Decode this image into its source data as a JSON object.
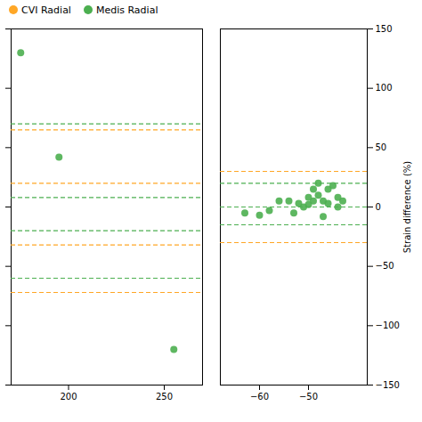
{
  "chart_data": [
    {
      "type": "scatter",
      "xlim": [
        170,
        270
      ],
      "xticks": [
        200,
        250
      ],
      "ylim": [
        -150,
        150
      ],
      "yticks": [
        -150,
        -100,
        -50,
        0,
        50,
        100,
        150
      ],
      "tick_labels": "x",
      "legend": "upper left",
      "series": [
        {
          "name": "CVI Radial",
          "color": "#ffa726",
          "line_style": "dashed",
          "hlines": [
            65,
            20,
            -32,
            -72
          ]
        },
        {
          "name": "Medis Radial",
          "color": "#4caf50",
          "marker": "circle",
          "x": [
            175,
            195,
            255
          ],
          "values": [
            130,
            42,
            -120
          ],
          "line_style": "dashed",
          "hlines": [
            70,
            8,
            -20,
            -60
          ]
        }
      ]
    },
    {
      "type": "scatter",
      "ylabel": "Strain difference (%)",
      "xlim": [
        -68,
        -38
      ],
      "xticks": [
        -60,
        -50
      ],
      "ylim": [
        -150,
        150
      ],
      "yticks": [
        -150,
        -100,
        -50,
        0,
        50,
        100,
        150
      ],
      "series": [
        {
          "color": "#ffa726",
          "line_style": "dashed",
          "hlines": [
            30,
            0,
            -30
          ]
        },
        {
          "color": "#4caf50",
          "marker": "circle",
          "x": [
            -63,
            -60,
            -58,
            -56,
            -54,
            -53,
            -52,
            -51,
            -50,
            -50,
            -49,
            -49,
            -48,
            -48,
            -47,
            -47,
            -46,
            -46,
            -45,
            -44,
            -44,
            -43
          ],
          "values": [
            -5,
            -7,
            -3,
            5,
            5,
            -5,
            3,
            0,
            8,
            2,
            15,
            5,
            20,
            10,
            5,
            -8,
            15,
            3,
            18,
            8,
            0,
            5
          ],
          "line_style": "dashed",
          "hlines": [
            20,
            0,
            -15
          ]
        }
      ]
    }
  ]
}
